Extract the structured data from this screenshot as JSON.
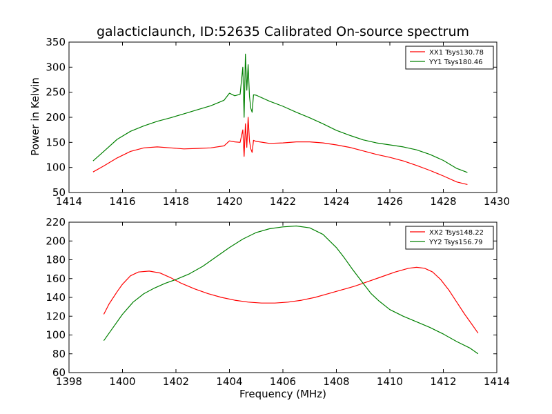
{
  "figure": {
    "title": "galacticlaunch, ID:52635 Calibrated On-source spectrum",
    "xlabel": "Frequency (MHz)",
    "ylabel": "Power in Kelvin"
  },
  "chart_data": [
    {
      "type": "line",
      "title": "galacticlaunch, ID:52635 Calibrated On-source spectrum",
      "xlabel": "",
      "ylabel": "Power in Kelvin",
      "xlim": [
        1414,
        1430
      ],
      "ylim": [
        50,
        350
      ],
      "xticks": [
        1414,
        1416,
        1418,
        1420,
        1422,
        1424,
        1426,
        1428,
        1430
      ],
      "yticks": [
        50,
        100,
        150,
        200,
        250,
        300,
        350
      ],
      "legend": "top-right",
      "grid": false,
      "series": [
        {
          "name": "XX1 Tsys130.78",
          "color": "#ff0000",
          "x": [
            1414.9,
            1415.3,
            1415.8,
            1416.3,
            1416.8,
            1417.3,
            1417.8,
            1418.3,
            1418.8,
            1419.3,
            1419.8,
            1420.0,
            1420.2,
            1420.4,
            1420.5,
            1420.55,
            1420.6,
            1420.65,
            1420.7,
            1420.75,
            1420.8,
            1420.85,
            1420.9,
            1421.0,
            1421.5,
            1422.0,
            1422.5,
            1423.0,
            1423.5,
            1424.0,
            1424.5,
            1425.0,
            1425.5,
            1426.0,
            1426.5,
            1427.0,
            1427.5,
            1428.0,
            1428.5,
            1428.9
          ],
          "y": [
            91,
            103,
            119,
            132,
            139,
            141,
            139,
            137,
            138,
            139,
            143,
            153,
            151,
            150,
            175,
            122,
            187,
            140,
            200,
            152,
            137,
            130,
            154,
            152,
            148,
            149,
            151,
            151,
            149,
            145,
            140,
            133,
            126,
            120,
            113,
            104,
            94,
            83,
            71,
            66
          ]
        },
        {
          "name": "YY1 Tsys180.46",
          "color": "#008000",
          "x": [
            1414.9,
            1415.3,
            1415.8,
            1416.3,
            1416.8,
            1417.3,
            1417.8,
            1418.3,
            1418.8,
            1419.3,
            1419.8,
            1420.0,
            1420.2,
            1420.4,
            1420.5,
            1420.55,
            1420.6,
            1420.65,
            1420.7,
            1420.75,
            1420.8,
            1420.85,
            1420.9,
            1421.0,
            1421.5,
            1422.0,
            1422.5,
            1423.0,
            1423.5,
            1424.0,
            1424.5,
            1425.0,
            1425.5,
            1426.0,
            1426.5,
            1427.0,
            1427.5,
            1428.0,
            1428.5,
            1428.9
          ],
          "y": [
            113,
            132,
            156,
            172,
            183,
            192,
            199,
            207,
            215,
            223,
            234,
            248,
            243,
            246,
            300,
            200,
            326,
            254,
            305,
            241,
            218,
            210,
            245,
            244,
            232,
            222,
            210,
            199,
            187,
            174,
            164,
            155,
            149,
            145,
            141,
            135,
            126,
            114,
            98,
            90
          ]
        }
      ]
    },
    {
      "type": "line",
      "title": "",
      "xlabel": "Frequency (MHz)",
      "ylabel": "",
      "xlim": [
        1398,
        1414
      ],
      "ylim": [
        60,
        220
      ],
      "xticks": [
        1398,
        1400,
        1402,
        1404,
        1406,
        1408,
        1410,
        1412,
        1414
      ],
      "yticks": [
        60,
        80,
        100,
        120,
        140,
        160,
        180,
        200,
        220
      ],
      "legend": "top-right",
      "grid": false,
      "series": [
        {
          "name": "XX2 Tsys148.22",
          "color": "#ff0000",
          "x": [
            1399.3,
            1399.5,
            1399.8,
            1400.0,
            1400.3,
            1400.6,
            1401.0,
            1401.4,
            1401.8,
            1402.2,
            1402.7,
            1403.2,
            1403.7,
            1404.2,
            1404.7,
            1405.2,
            1405.7,
            1406.2,
            1406.7,
            1407.2,
            1407.7,
            1408.2,
            1408.7,
            1409.2,
            1409.7,
            1410.2,
            1410.7,
            1411.0,
            1411.3,
            1411.6,
            1411.9,
            1412.2,
            1412.5,
            1412.8,
            1413.0,
            1413.3
          ],
          "y": [
            122,
            133,
            146,
            154,
            163,
            167,
            168,
            166,
            161,
            155,
            149,
            144,
            140,
            137,
            135,
            134,
            134,
            135,
            137,
            140,
            144,
            148,
            152,
            157,
            162,
            167,
            171,
            172,
            171,
            167,
            159,
            148,
            135,
            122,
            114,
            102
          ]
        },
        {
          "name": "YY2 Tsys156.79",
          "color": "#008000",
          "x": [
            1399.3,
            1399.6,
            1400.0,
            1400.4,
            1400.8,
            1401.2,
            1401.6,
            1402.0,
            1402.5,
            1403.0,
            1403.5,
            1404.0,
            1404.5,
            1405.0,
            1405.5,
            1406.0,
            1406.5,
            1407.0,
            1407.5,
            1408.0,
            1408.3,
            1408.6,
            1409.0,
            1409.3,
            1409.6,
            1410.0,
            1410.5,
            1411.0,
            1411.5,
            1412.0,
            1412.5,
            1413.0,
            1413.3
          ],
          "y": [
            94,
            106,
            122,
            135,
            144,
            150,
            155,
            159,
            165,
            173,
            183,
            193,
            202,
            209,
            213,
            215,
            216,
            214,
            207,
            193,
            182,
            170,
            155,
            144,
            136,
            127,
            120,
            114,
            108,
            101,
            93,
            86,
            80
          ]
        }
      ]
    }
  ]
}
